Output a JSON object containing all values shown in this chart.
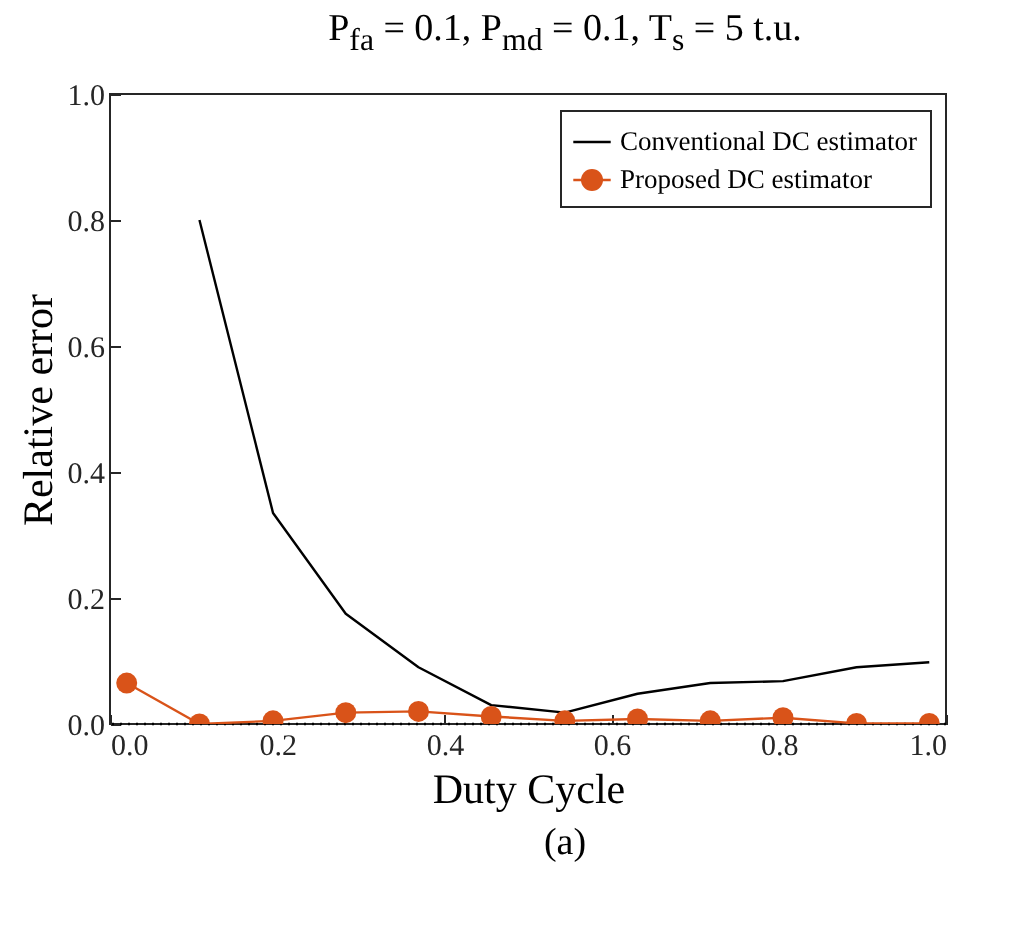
{
  "chart_data": {
    "type": "line",
    "title": "P$_{fa}$ = 0.1, P$_{md}$ = 0.1, T$_{s}$ = 5 t.u.",
    "xlabel": "Duty Cycle",
    "ylabel": "Relative error",
    "annotations": [
      "(a)"
    ],
    "x": [
      0.02,
      0.107,
      0.195,
      0.282,
      0.369,
      0.456,
      0.544,
      0.631,
      0.718,
      0.805,
      0.893,
      0.98
    ],
    "series": [
      {
        "name": "Conventional DC estimator",
        "color": "#000000",
        "marker": "none",
        "values": [
          null,
          0.8,
          0.335,
          0.175,
          0.09,
          0.03,
          0.018,
          0.048,
          0.065,
          0.068,
          0.09,
          0.098
        ]
      },
      {
        "name": "Proposed DC estimator",
        "color": "#d95319",
        "marker": "circle",
        "values": [
          0.065,
          0.0,
          0.005,
          0.018,
          0.02,
          0.012,
          0.005,
          0.008,
          0.005,
          0.01,
          0.001,
          0.001
        ]
      }
    ],
    "ref_lines": [
      {
        "axis": "y",
        "value": 0,
        "color": "#000000",
        "line_style": "dotted"
      }
    ],
    "xlim": [
      0,
      1
    ],
    "ylim": [
      0,
      1
    ],
    "xticks": [
      {
        "value": 0,
        "label": "0.0"
      },
      0.2,
      0.4,
      0.6,
      0.8,
      {
        "value": 1,
        "label": "1.0"
      }
    ],
    "yticks": [
      {
        "value": 0,
        "label": "0.0"
      },
      0.2,
      0.4,
      0.6,
      0.8,
      {
        "value": 1,
        "label": "1.0"
      }
    ],
    "grid": false,
    "legend": "top right"
  }
}
